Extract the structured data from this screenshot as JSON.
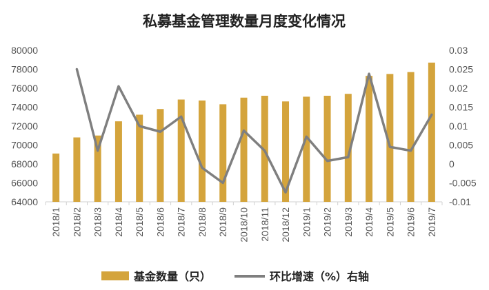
{
  "chart_data": {
    "type": "bar+line",
    "title": "私募基金管理数量月度变化情况",
    "categories": [
      "2018/1",
      "2018/2",
      "2018/3",
      "2018/4",
      "2018/5",
      "2018/6",
      "2018/7",
      "2018/8",
      "2018/9",
      "2018/10",
      "2018/11",
      "2018/12",
      "2019/1",
      "2019/2",
      "2019/3",
      "2019/4",
      "2019/5",
      "2019/6",
      "2019/7"
    ],
    "series": [
      {
        "name": "基金数量（只）",
        "type": "bar",
        "axis": "left",
        "color": "#D4A43C",
        "values": [
          69100,
          70800,
          71000,
          72500,
          73200,
          73800,
          74800,
          74700,
          74300,
          75000,
          75200,
          74600,
          75100,
          75200,
          75400,
          77300,
          77500,
          77700,
          78700
        ]
      },
      {
        "name": "环比增速（%）右轴",
        "type": "line",
        "axis": "right",
        "color": "#7F7F7F",
        "values": [
          null,
          0.025,
          0.0035,
          0.0205,
          0.01,
          0.0085,
          0.0125,
          -0.001,
          -0.005,
          0.0088,
          0.0035,
          -0.0075,
          0.0072,
          0.0008,
          0.0018,
          0.0238,
          0.0045,
          0.0035,
          0.013
        ]
      }
    ],
    "left_axis": {
      "ylim": [
        64000,
        80000
      ],
      "ticks": [
        "64000",
        "66000",
        "68000",
        "70000",
        "72000",
        "74000",
        "76000",
        "78000",
        "80000"
      ]
    },
    "right_axis": {
      "ylim": [
        -0.01,
        0.03
      ],
      "ticks": [
        "-0.01",
        "-0.005",
        "0",
        "0.005",
        "0.01",
        "0.015",
        "0.02",
        "0.025",
        "0.03"
      ]
    },
    "legend": {
      "position": "bottom",
      "items": [
        "基金数量（只）",
        "环比增速（%）右轴"
      ]
    }
  }
}
